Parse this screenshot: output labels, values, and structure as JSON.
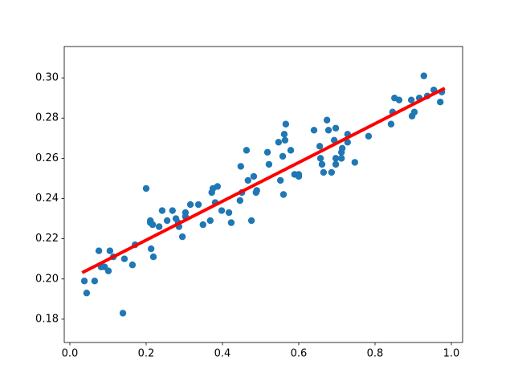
{
  "chart_data": {
    "type": "scatter",
    "xlim": [
      -0.0147,
      1.0295
    ],
    "ylim": [
      0.1684,
      0.3156
    ],
    "xticks": [
      {
        "value": 0,
        "label": "0.0"
      },
      0.2,
      0.4,
      0.6,
      0.8,
      {
        "value": 1,
        "label": "1.0"
      }
    ],
    "yticks": [
      0.18,
      {
        "value": 0.2,
        "label": "0.20"
      },
      0.22,
      0.24,
      0.26,
      0.28,
      {
        "value": 0.3,
        "label": "0.30"
      }
    ],
    "series": [
      {
        "type": "scatter",
        "color": "#1f77b4",
        "x": [
          0.038,
          0.044,
          0.065,
          0.076,
          0.082,
          0.091,
          0.101,
          0.105,
          0.114,
          0.139,
          0.143,
          0.164,
          0.171,
          0.2,
          0.211,
          0.211,
          0.217,
          0.213,
          0.219,
          0.234,
          0.242,
          0.255,
          0.269,
          0.278,
          0.284,
          0.286,
          0.295,
          0.303,
          0.303,
          0.316,
          0.337,
          0.349,
          0.368,
          0.372,
          0.375,
          0.381,
          0.387,
          0.398,
          0.417,
          0.423,
          0.446,
          0.451,
          0.448,
          0.463,
          0.467,
          0.476,
          0.482,
          0.488,
          0.49,
          0.518,
          0.522,
          0.547,
          0.552,
          0.56,
          0.558,
          0.562,
          0.564,
          0.566,
          0.579,
          0.589,
          0.6,
          0.6,
          0.64,
          0.655,
          0.657,
          0.661,
          0.665,
          0.674,
          0.678,
          0.686,
          0.693,
          0.697,
          0.697,
          0.697,
          0.712,
          0.714,
          0.712,
          0.728,
          0.728,
          0.747,
          0.783,
          0.842,
          0.846,
          0.851,
          0.863,
          0.895,
          0.897,
          0.903,
          0.916,
          0.928,
          0.937,
          0.954,
          0.971,
          0.975
        ],
        "values": [
          0.199,
          0.193,
          0.199,
          0.214,
          0.206,
          0.206,
          0.204,
          0.214,
          0.211,
          0.183,
          0.21,
          0.207,
          0.217,
          0.245,
          0.229,
          0.228,
          0.227,
          0.215,
          0.211,
          0.226,
          0.234,
          0.229,
          0.234,
          0.23,
          0.228,
          0.226,
          0.221,
          0.231,
          0.233,
          0.237,
          0.237,
          0.227,
          0.229,
          0.243,
          0.245,
          0.238,
          0.246,
          0.234,
          0.233,
          0.228,
          0.239,
          0.243,
          0.256,
          0.264,
          0.249,
          0.229,
          0.251,
          0.243,
          0.244,
          0.263,
          0.257,
          0.268,
          0.249,
          0.242,
          0.261,
          0.272,
          0.269,
          0.277,
          0.264,
          0.252,
          0.251,
          0.252,
          0.274,
          0.266,
          0.26,
          0.257,
          0.253,
          0.279,
          0.274,
          0.253,
          0.269,
          0.275,
          0.26,
          0.257,
          0.263,
          0.265,
          0.26,
          0.272,
          0.268,
          0.258,
          0.271,
          0.277,
          0.283,
          0.29,
          0.289,
          0.289,
          0.281,
          0.283,
          0.29,
          0.301,
          0.291,
          0.294,
          0.288,
          0.293
        ]
      },
      {
        "type": "line",
        "color": "#ff0000",
        "x": [
          0.036,
          0.979
        ],
        "values": [
          0.2035,
          0.2945
        ]
      }
    ]
  }
}
